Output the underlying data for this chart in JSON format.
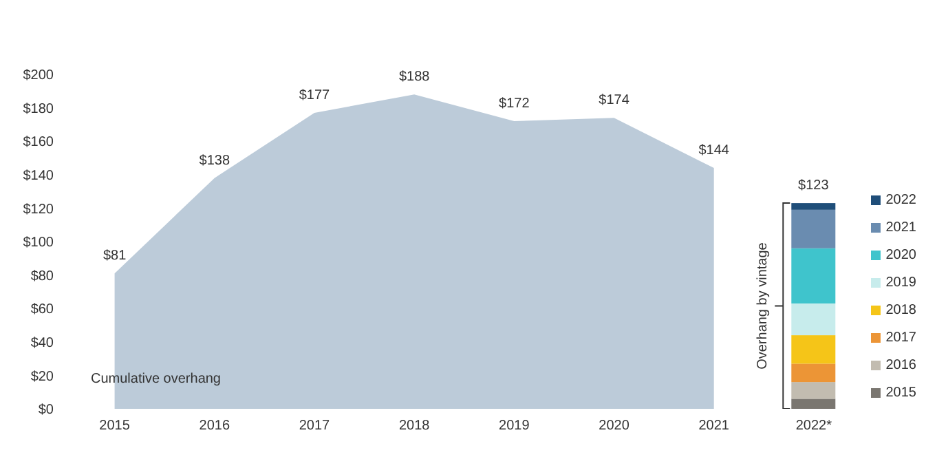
{
  "chart_data": {
    "type": "area",
    "categories": [
      "2015",
      "2016",
      "2017",
      "2018",
      "2019",
      "2020",
      "2021",
      "2022*"
    ],
    "ylim": [
      0,
      200
    ],
    "yticks": [
      {
        "value": 0,
        "label": "$0"
      },
      {
        "value": 20,
        "label": "$20"
      },
      {
        "value": 40,
        "label": "$40"
      },
      {
        "value": 60,
        "label": "$60"
      },
      {
        "value": 80,
        "label": "$80"
      },
      {
        "value": 100,
        "label": "$100"
      },
      {
        "value": 120,
        "label": "$120"
      },
      {
        "value": 140,
        "label": "$140"
      },
      {
        "value": 160,
        "label": "$160"
      },
      {
        "value": 180,
        "label": "$180"
      },
      {
        "value": 200,
        "label": "$200"
      }
    ],
    "stacked": true,
    "grid": false,
    "legend": "right",
    "annotations": [
      "Overhang by vintage"
    ],
    "totals": [
      null,
      null,
      null,
      null,
      null,
      null,
      null,
      "$123"
    ],
    "series": [
      {
        "name": "Cumulative overhang",
        "color": "#bccbd9",
        "values": [
          81,
          138,
          177,
          188,
          172,
          174,
          144,
          null
        ],
        "value_labels": [
          "$81",
          "$138",
          "$177",
          "$188",
          "$172",
          "$174",
          "$144",
          null
        ]
      },
      {
        "type": "bar",
        "name": "2015",
        "color": "#7a7670",
        "values": [
          null,
          null,
          null,
          null,
          null,
          null,
          null,
          6
        ]
      },
      {
        "type": "bar",
        "name": "2016",
        "color": "#c2bcb0",
        "values": [
          null,
          null,
          null,
          null,
          null,
          null,
          null,
          10
        ]
      },
      {
        "type": "bar",
        "name": "2017",
        "color": "#ec9536",
        "values": [
          null,
          null,
          null,
          null,
          null,
          null,
          null,
          11
        ]
      },
      {
        "type": "bar",
        "name": "2018",
        "color": "#f5c518",
        "values": [
          null,
          null,
          null,
          null,
          null,
          null,
          null,
          17
        ]
      },
      {
        "type": "bar",
        "name": "2019",
        "color": "#c7ecec",
        "values": [
          null,
          null,
          null,
          null,
          null,
          null,
          null,
          19
        ]
      },
      {
        "type": "bar",
        "name": "2020",
        "color": "#3fc4cc",
        "values": [
          null,
          null,
          null,
          null,
          null,
          null,
          null,
          33
        ]
      },
      {
        "type": "bar",
        "name": "2021",
        "color": "#6a8cb0",
        "values": [
          null,
          null,
          null,
          null,
          null,
          null,
          null,
          23
        ]
      },
      {
        "type": "bar",
        "name": "2022",
        "color": "#1f4e79",
        "values": [
          null,
          null,
          null,
          null,
          null,
          null,
          null,
          4
        ]
      }
    ]
  }
}
